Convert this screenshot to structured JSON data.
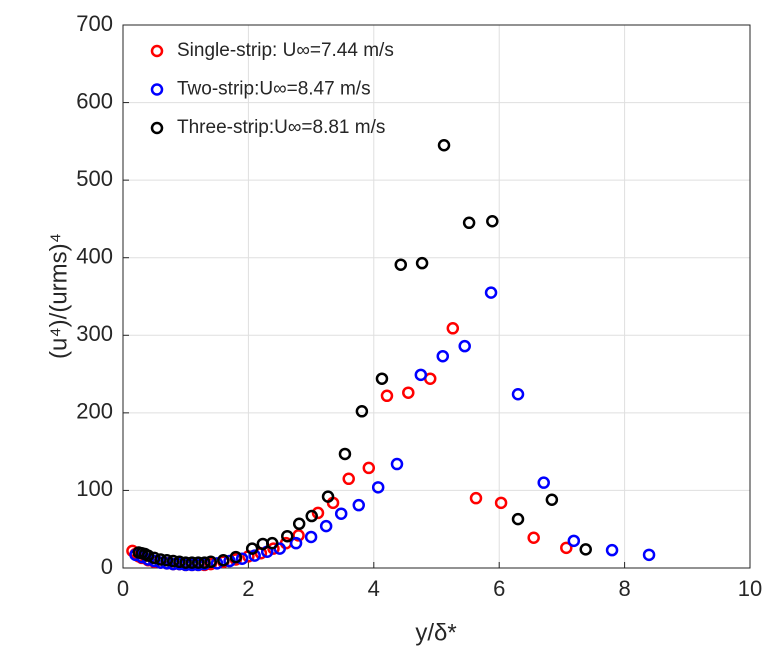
{
  "chart_data": {
    "type": "scatter",
    "xlabel": "y/δ*",
    "ylabel": "(u⁴)/(urms)⁴",
    "xlim": [
      0,
      10
    ],
    "ylim": [
      0,
      700
    ],
    "xticks": [
      0,
      2,
      4,
      6,
      8,
      10
    ],
    "yticks": [
      0,
      100,
      200,
      300,
      400,
      500,
      600,
      700
    ],
    "grid": true,
    "legend": "upper left",
    "series": [
      {
        "name": "Single-strip: U∞=7.44 m/s",
        "color": "#ff0000",
        "x": [
          0.15,
          0.2,
          0.25,
          0.3,
          0.4,
          0.5,
          0.6,
          0.7,
          0.8,
          0.9,
          1.0,
          1.1,
          1.2,
          1.3,
          1.4,
          1.6,
          1.8,
          2.0,
          2.2,
          2.4,
          2.6,
          2.8,
          3.11,
          3.35,
          3.6,
          3.92,
          4.21,
          4.55,
          4.9,
          5.26,
          5.63,
          6.03,
          6.55,
          7.07
        ],
        "values": [
          22,
          18,
          15,
          13,
          10,
          8,
          7,
          6,
          5,
          5,
          4,
          4,
          4,
          4,
          5,
          8,
          11,
          15,
          19,
          25,
          32,
          42,
          71,
          84,
          115,
          129,
          222,
          226,
          244,
          309,
          90,
          84,
          39,
          26
        ]
      },
      {
        "name": "Two-strip:U∞=8.47 m/s",
        "color": "#0000ff",
        "x": [
          0.2,
          0.3,
          0.4,
          0.5,
          0.6,
          0.7,
          0.8,
          0.9,
          1.0,
          1.1,
          1.2,
          1.3,
          1.5,
          1.7,
          1.9,
          2.1,
          2.3,
          2.5,
          2.76,
          3.0,
          3.24,
          3.48,
          3.76,
          4.07,
          4.37,
          4.75,
          5.1,
          5.45,
          5.87,
          6.3,
          6.71,
          7.19,
          7.8,
          8.39
        ],
        "values": [
          17,
          14,
          11,
          9,
          7,
          6,
          5,
          5,
          4,
          4,
          4,
          5,
          6,
          9,
          12,
          16,
          21,
          25,
          32,
          40,
          54,
          70,
          81,
          104,
          134,
          249,
          273,
          286,
          355,
          224,
          110,
          35,
          23,
          17
        ]
      },
      {
        "name": "Three-strip:U∞=8.81 m/s",
        "color": "#000000",
        "x": [
          0.25,
          0.3,
          0.35,
          0.4,
          0.5,
          0.6,
          0.7,
          0.8,
          0.9,
          1.0,
          1.1,
          1.2,
          1.3,
          1.4,
          1.6,
          1.8,
          2.06,
          2.23,
          2.38,
          2.62,
          2.81,
          3.01,
          3.27,
          3.54,
          3.81,
          4.13,
          4.43,
          4.77,
          5.12,
          5.52,
          5.89,
          6.3,
          6.84,
          7.38
        ],
        "values": [
          20,
          19,
          18,
          16,
          13,
          11,
          10,
          9,
          8,
          7,
          7,
          7,
          7,
          8,
          10,
          14,
          25,
          31,
          32,
          41,
          57,
          67,
          92,
          147,
          202,
          244,
          391,
          393,
          545,
          445,
          447,
          63,
          88,
          24
        ]
      }
    ]
  }
}
